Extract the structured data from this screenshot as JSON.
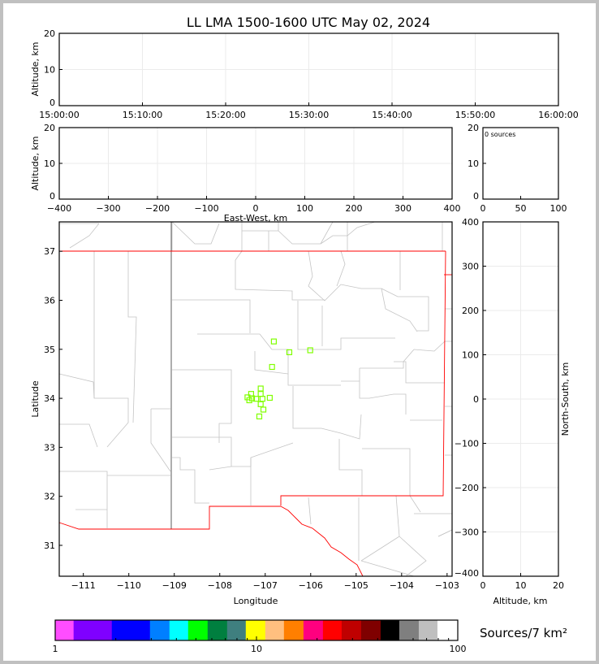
{
  "title": "LL LMA 1500-1600 UTC May 02, 2024",
  "chart_data": [
    {
      "panel": "time-altitude",
      "type": "scatter",
      "ylabel": "Altitude, km",
      "xlim": [
        "15:00:00",
        "16:00:00"
      ],
      "xticks": [
        "15:00:00",
        "15:10:00",
        "15:20:00",
        "15:30:00",
        "15:40:00",
        "15:50:00",
        "16:00:00"
      ],
      "ylim": [
        0,
        20
      ],
      "yticks": [
        0,
        10,
        20
      ],
      "grid": true,
      "points": []
    },
    {
      "panel": "eastwest-altitude",
      "type": "scatter",
      "xlabel": "East-West, km",
      "ylabel": "Altitude, km",
      "xlim": [
        -400,
        400
      ],
      "xticks": [
        -400,
        -300,
        -200,
        -100,
        0,
        100,
        200,
        300,
        400
      ],
      "ylim": [
        0,
        20
      ],
      "yticks": [
        0,
        10,
        20
      ],
      "grid": true,
      "points": []
    },
    {
      "panel": "altitude-histogram",
      "type": "bar",
      "annotation": "0 sources",
      "xlim": [
        0,
        100
      ],
      "xticks": [
        0,
        50,
        100
      ],
      "ylim": [
        0,
        20
      ],
      "yticks": [
        0,
        10,
        20
      ],
      "values": []
    },
    {
      "panel": "plan-view",
      "type": "scatter",
      "xlabel": "Longitude",
      "ylabel": "Latitude",
      "xlim": [
        -111.53,
        -102.89
      ],
      "xticks": [
        -111,
        -110,
        -109,
        -108,
        -107,
        -106,
        -105,
        -104,
        -103
      ],
      "ylim": [
        30.37,
        37.6
      ],
      "yticks": [
        31,
        32,
        33,
        34,
        35,
        36,
        37
      ],
      "marker": "hollow-square",
      "marker_color": "#80ff00",
      "points": [
        {
          "lon": -106.81,
          "lat": 35.16
        },
        {
          "lon": -106.47,
          "lat": 34.94
        },
        {
          "lon": -106.01,
          "lat": 34.98
        },
        {
          "lon": -106.85,
          "lat": 34.64
        },
        {
          "lon": -107.1,
          "lat": 34.2
        },
        {
          "lon": -107.31,
          "lat": 34.09
        },
        {
          "lon": -107.1,
          "lat": 34.09
        },
        {
          "lon": -107.39,
          "lat": 34.02
        },
        {
          "lon": -107.29,
          "lat": 34.0
        },
        {
          "lon": -107.35,
          "lat": 33.96
        },
        {
          "lon": -107.2,
          "lat": 33.99
        },
        {
          "lon": -107.06,
          "lat": 33.99
        },
        {
          "lon": -106.9,
          "lat": 34.01
        },
        {
          "lon": -107.1,
          "lat": 33.88
        },
        {
          "lon": -107.04,
          "lat": 33.77
        },
        {
          "lon": -107.13,
          "lat": 33.63
        }
      ]
    },
    {
      "panel": "altitude-northsouth",
      "type": "scatter",
      "xlabel": "Altitude, km",
      "ylabel": "North-South, km",
      "xlim": [
        0,
        20
      ],
      "xticks": [
        0,
        10,
        20
      ],
      "ylim": [
        -400,
        400
      ],
      "yticks": [
        -400,
        -300,
        -200,
        -100,
        0,
        100,
        200,
        300,
        400
      ],
      "grid": true,
      "points": []
    },
    {
      "panel": "colorbar",
      "type": "colorbar",
      "label": "Sources/7 km²",
      "scale": "log",
      "range": [
        1,
        100
      ],
      "ticks": [
        1,
        10,
        100
      ],
      "colors": [
        "#ff4dff",
        "#7f00ff",
        "#0000ff",
        "#007fff",
        "#00ffff",
        "#00ff00",
        "#007f3f",
        "#3f7f7f",
        "#ffff00",
        "#ffbf7f",
        "#ff7f00",
        "#ff007f",
        "#ff0000",
        "#bf0000",
        "#7f0000",
        "#000000",
        "#7f7f7f",
        "#bfbfbf",
        "#ffffff"
      ]
    }
  ]
}
